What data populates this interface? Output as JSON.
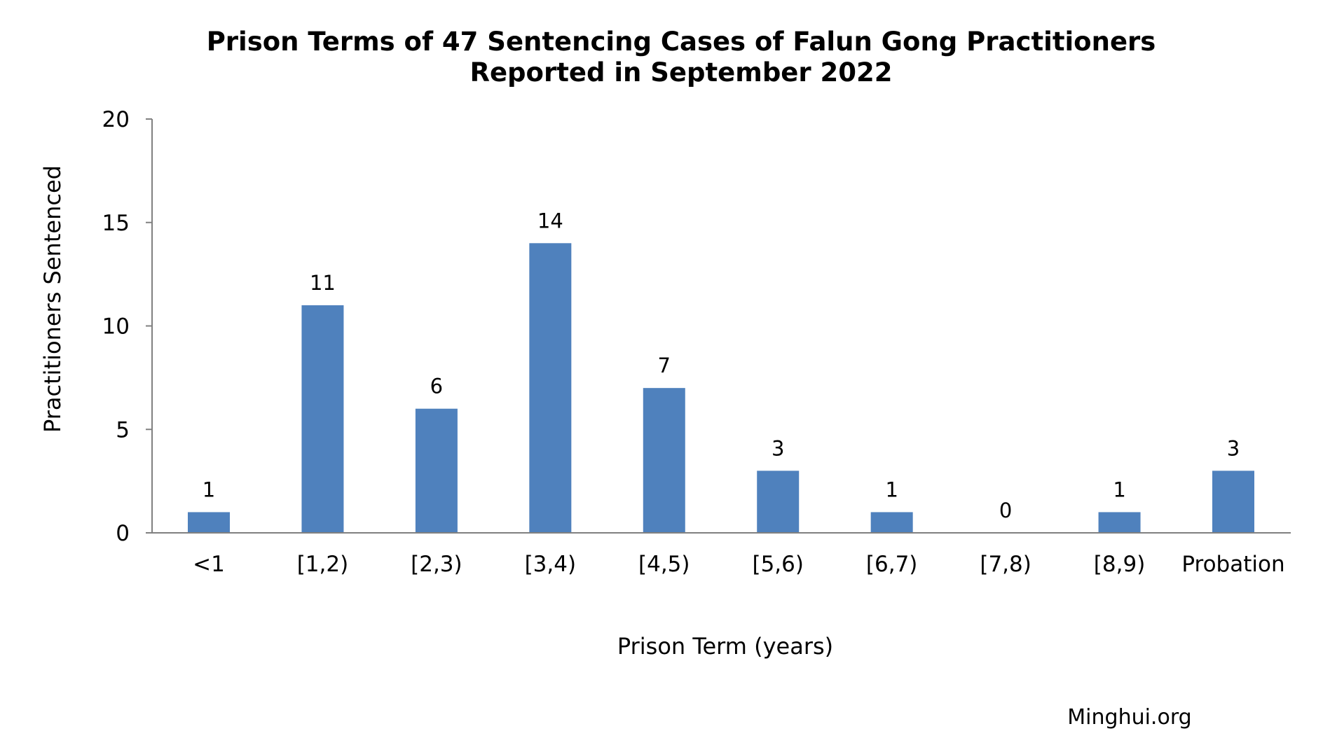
{
  "chart_data": {
    "type": "bar",
    "title": "Prison Terms of 47 Sentencing Cases of Falun Gong Practitioners",
    "subtitle": "Reported in September 2022",
    "xlabel": "Prison Term (years)",
    "ylabel": "Practitioners Sentenced",
    "categories": [
      "<1",
      "[1,2)",
      "[2,3)",
      "[3,4)",
      "[4,5)",
      "[5,6)",
      "[6,7)",
      "[7,8)",
      "[8,9)",
      "Probation"
    ],
    "values": [
      1,
      11,
      6,
      14,
      7,
      3,
      1,
      0,
      1,
      3
    ],
    "data_labels": [
      "1",
      "11",
      "6",
      "14",
      "7",
      "3",
      "1",
      "0",
      "1",
      "3"
    ],
    "ylim": [
      0,
      20
    ],
    "yticks": [
      0,
      5,
      10,
      15,
      20
    ],
    "ytick_labels": [
      "0",
      "5",
      "10",
      "15",
      "20"
    ],
    "grid": false,
    "legend": "none",
    "bar_color": "#4F81BD",
    "axis_color": "#808080",
    "source": "Minghui.org"
  }
}
